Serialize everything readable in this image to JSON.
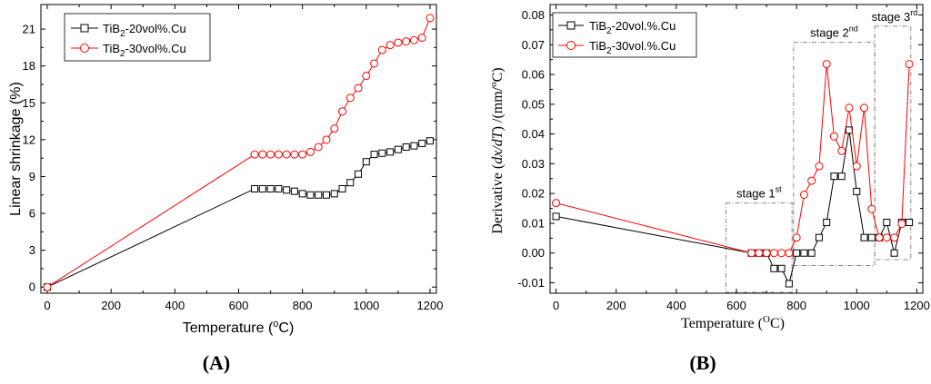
{
  "chart_data": [
    {
      "type": "line",
      "panel_label": "(A)",
      "xlabel": "Temperature (",
      "xlabel_sup": "o",
      "xlabel_tail": "C)",
      "ylabel": "Linear shrinkage (%)",
      "xlim": [
        -20,
        1220
      ],
      "ylim": [
        -0.5,
        23
      ],
      "xticks": [
        0,
        200,
        400,
        600,
        800,
        1000,
        1200
      ],
      "yticks": [
        0,
        3,
        6,
        9,
        12,
        15,
        18,
        21
      ],
      "series": [
        {
          "name": "TiB2-20vol%.Cu",
          "legend_main": "TiB",
          "legend_sub": "2",
          "legend_tail": "-20vol%.Cu",
          "color": "#000000",
          "marker": "square",
          "x": [
            0,
            650,
            675,
            700,
            725,
            750,
            775,
            800,
            825,
            850,
            875,
            900,
            925,
            950,
            975,
            1000,
            1025,
            1050,
            1075,
            1100,
            1125,
            1150,
            1175,
            1200
          ],
          "y": [
            0,
            8.0,
            8.0,
            8.0,
            8.0,
            7.9,
            7.8,
            7.6,
            7.5,
            7.5,
            7.5,
            7.6,
            8.0,
            8.5,
            9.2,
            10.2,
            10.8,
            10.9,
            11.0,
            11.2,
            11.4,
            11.5,
            11.7,
            11.9
          ]
        },
        {
          "name": "TiB2-30vol%.Cu",
          "legend_main": "TiB",
          "legend_sub": "2",
          "legend_tail": "-30vol%.Cu",
          "color": "#ff0000",
          "marker": "circle",
          "x": [
            0,
            650,
            675,
            700,
            725,
            750,
            775,
            800,
            825,
            850,
            875,
            900,
            925,
            950,
            975,
            1000,
            1025,
            1050,
            1075,
            1100,
            1125,
            1150,
            1175,
            1200
          ],
          "y": [
            0,
            10.8,
            10.8,
            10.8,
            10.8,
            10.8,
            10.8,
            10.8,
            11.0,
            11.4,
            12.0,
            12.9,
            14.3,
            15.4,
            16.2,
            17.2,
            18.2,
            19.3,
            19.7,
            19.9,
            20.0,
            20.1,
            20.3,
            21.9
          ]
        }
      ]
    },
    {
      "type": "line",
      "panel_label": "(B)",
      "xlabel": "Temperature (",
      "xlabel_sup": "O",
      "xlabel_tail": "C)",
      "ylabel_pre": "Derivative (",
      "ylabel_ital": "dx/dT",
      "ylabel_post": ") /(mm/",
      "ylabel_sup": "o",
      "ylabel_end": "C)",
      "xlim": [
        -20,
        1220
      ],
      "ylim": [
        -0.0135,
        0.0835
      ],
      "xticks": [
        0,
        200,
        400,
        600,
        800,
        1000,
        1200
      ],
      "yticks": [
        -0.01,
        0.0,
        0.01,
        0.02,
        0.03,
        0.04,
        0.05,
        0.06,
        0.07,
        0.08
      ],
      "ytick_labels": [
        "-0.01",
        "0.00",
        "0.01",
        "0.02",
        "0.03",
        "0.04",
        "0.05",
        "0.06",
        "0.07",
        "0.08"
      ],
      "annotations": [
        {
          "label": "stage 1",
          "sup": "st",
          "x0": 565,
          "x1": 785,
          "y0": -0.0132,
          "y1": 0.0168
        },
        {
          "label": "stage 2",
          "sup": "nd",
          "x0": 790,
          "x1": 1060,
          "y0": -0.0042,
          "y1": 0.0708
        },
        {
          "label": "stage 3",
          "sup": "rd",
          "x0": 1060,
          "x1": 1180,
          "y0": -0.0022,
          "y1": 0.0762
        }
      ],
      "series": [
        {
          "name": "TiB2-20vol.%.Cu",
          "legend_main": "TiB",
          "legend_sub": "2",
          "legend_tail": "-20vol.%.Cu",
          "color": "#000000",
          "marker": "square",
          "x": [
            0,
            650,
            675,
            700,
            725,
            750,
            775,
            800,
            825,
            850,
            875,
            900,
            925,
            950,
            975,
            1000,
            1025,
            1050,
            1075,
            1100,
            1125,
            1150,
            1175
          ],
          "y": [
            0.0123,
            0.0,
            0.0,
            0.0,
            -0.0052,
            -0.0052,
            -0.0103,
            0.0,
            0.0,
            0.0,
            0.0052,
            0.0103,
            0.0258,
            0.0258,
            0.0413,
            0.0207,
            0.0052,
            0.0052,
            0.0052,
            0.0103,
            0.0,
            0.0103,
            0.0103
          ]
        },
        {
          "name": "TiB2-30vol.%.Cu",
          "legend_main": "TiB",
          "legend_sub": "2",
          "legend_tail": "-30vol.%.Cu",
          "color": "#ff0000",
          "marker": "circle",
          "x": [
            0,
            650,
            675,
            700,
            725,
            750,
            775,
            800,
            825,
            850,
            875,
            900,
            925,
            950,
            975,
            1000,
            1025,
            1050,
            1075,
            1100,
            1125,
            1150,
            1175
          ],
          "y": [
            0.0168,
            0.0,
            0.0,
            0.0,
            0.0,
            0.0,
            0.0,
            0.0052,
            0.0196,
            0.0243,
            0.0292,
            0.0635,
            0.0392,
            0.0343,
            0.0488,
            0.0292,
            0.0488,
            0.0148,
            0.0052,
            0.0052,
            0.0052,
            0.0098,
            0.0635
          ]
        }
      ]
    }
  ]
}
